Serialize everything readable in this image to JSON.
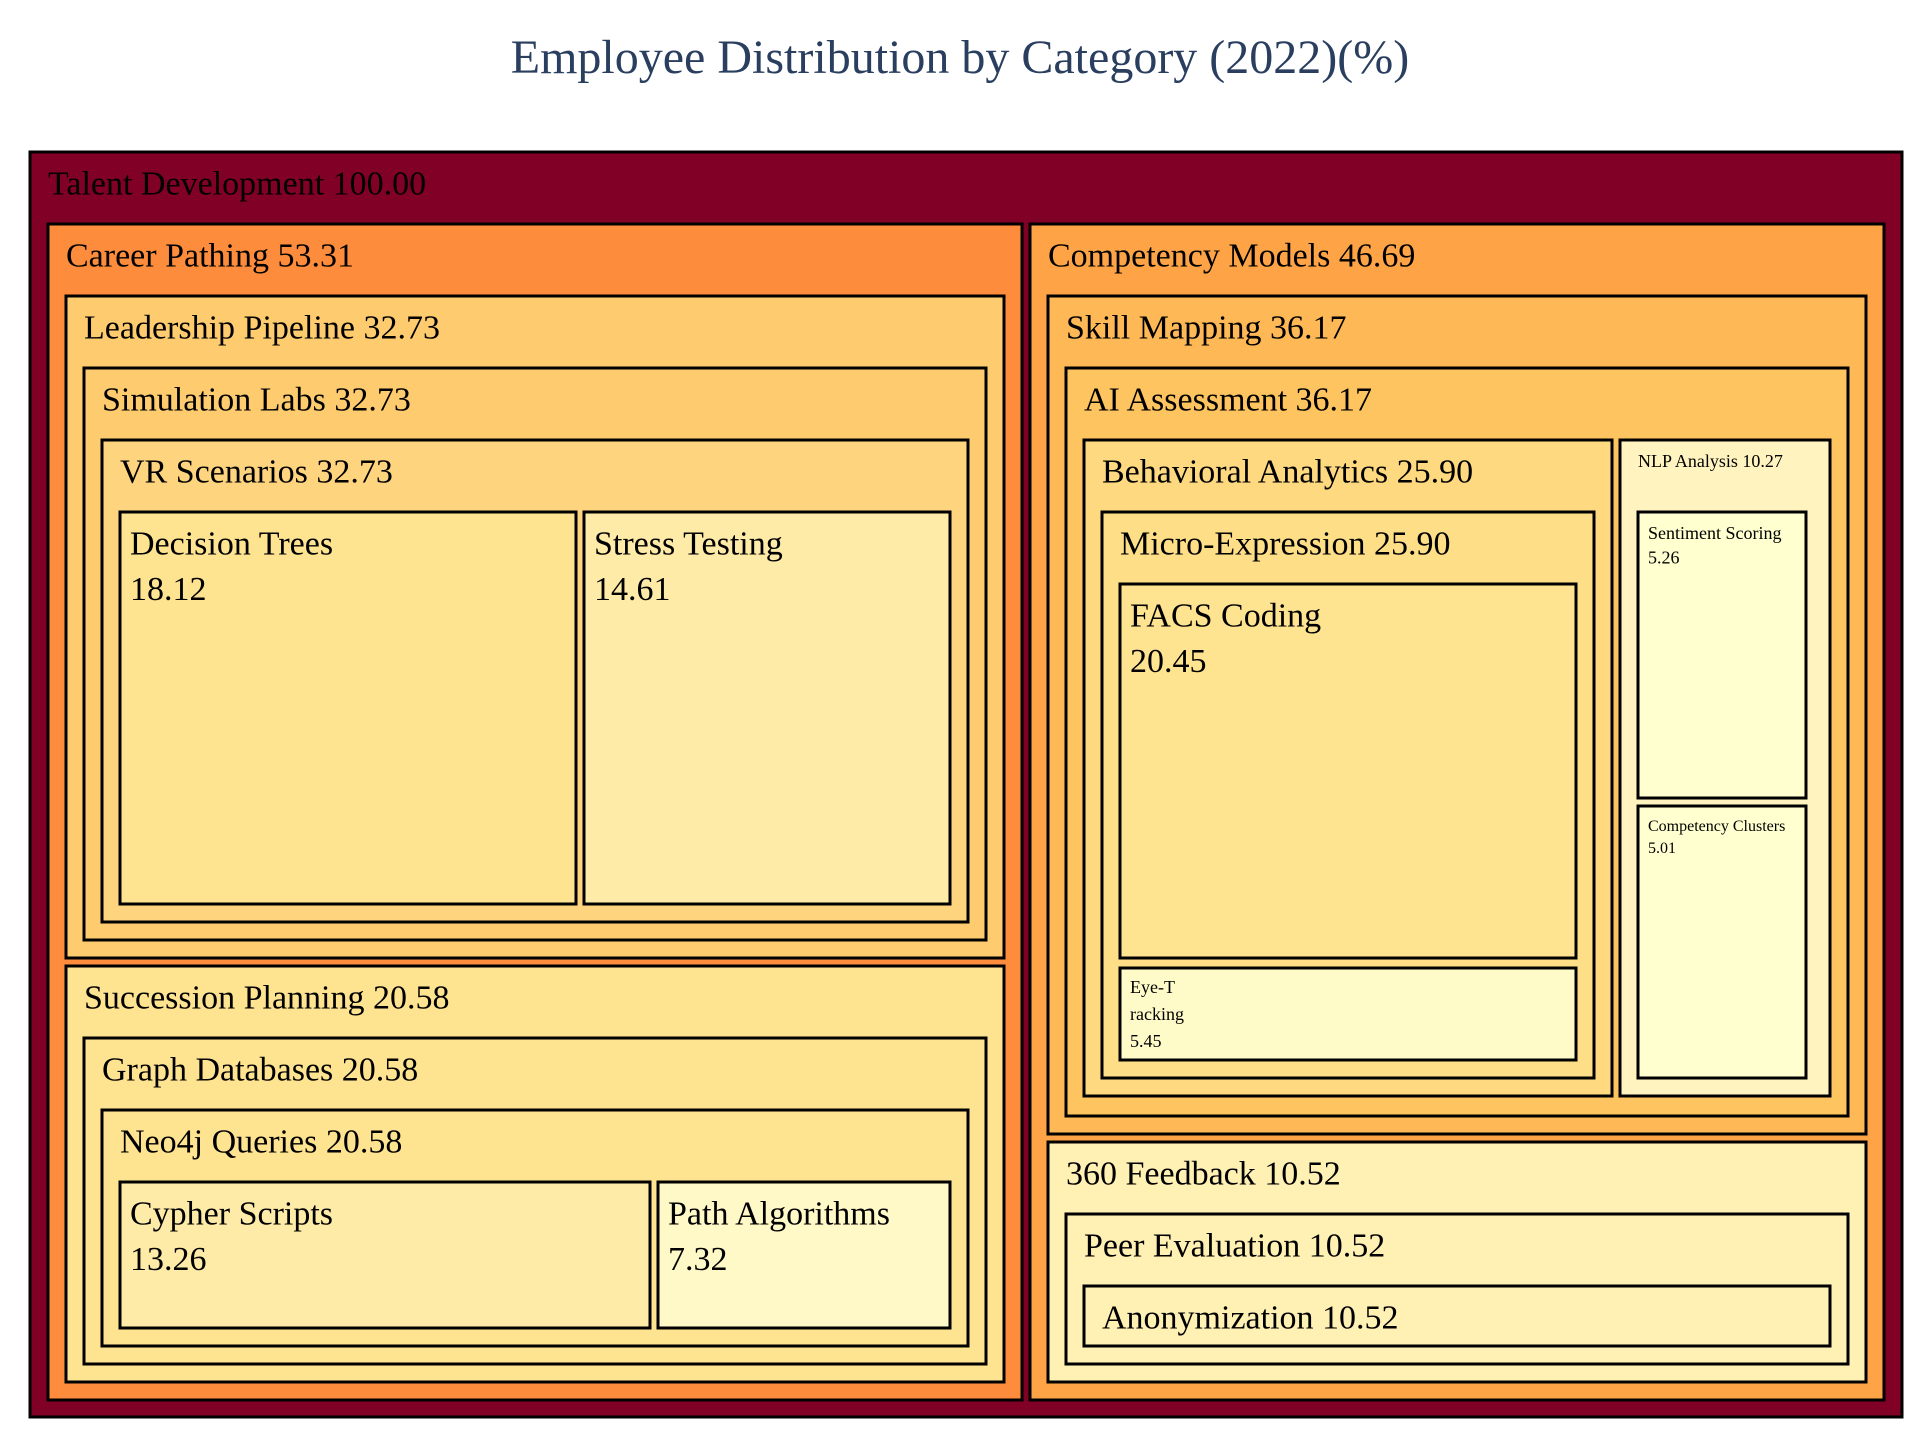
{
  "chart_data": {
    "type": "treemap",
    "title": "Employee Distribution by Category (2022)(%)",
    "root": {
      "name": "Talent Development",
      "value": "100.00",
      "children": [
        {
          "name": "Career Pathing",
          "value": "53.31",
          "children": [
            {
              "name": "Leadership Pipeline",
              "value": "32.73",
              "children": [
                {
                  "name": "Simulation Labs",
                  "value": "32.73",
                  "children": [
                    {
                      "name": "VR Scenarios",
                      "value": "32.73",
                      "children": [
                        {
                          "name": "Decision Trees",
                          "value": "18.12"
                        },
                        {
                          "name": "Stress Testing",
                          "value": "14.61"
                        }
                      ]
                    }
                  ]
                }
              ]
            },
            {
              "name": "Succession Planning",
              "value": "20.58",
              "children": [
                {
                  "name": "Graph Databases",
                  "value": "20.58",
                  "children": [
                    {
                      "name": "Neo4j Queries",
                      "value": "20.58",
                      "children": [
                        {
                          "name": "Cypher Scripts",
                          "value": "13.26"
                        },
                        {
                          "name": "Path Algorithms",
                          "value": "7.32"
                        }
                      ]
                    }
                  ]
                }
              ]
            }
          ]
        },
        {
          "name": "Competency Models",
          "value": "46.69",
          "children": [
            {
              "name": "Skill Mapping",
              "value": "36.17",
              "children": [
                {
                  "name": "AI Assessment",
                  "value": "36.17",
                  "children": [
                    {
                      "name": "Behavioral Analytics",
                      "value": "25.90",
                      "children": [
                        {
                          "name": "Micro-Expression",
                          "value": "25.90",
                          "children": [
                            {
                              "name": "FACS Coding",
                              "value": "20.45"
                            },
                            {
                              "name": "Eye-Tracking",
                              "value": "5.45"
                            }
                          ]
                        }
                      ]
                    },
                    {
                      "name": "NLP Analysis",
                      "value": "10.27",
                      "children": [
                        {
                          "name": "Sentiment Scoring",
                          "value": "5.26"
                        },
                        {
                          "name": "Competency Clusters",
                          "value": "5.01"
                        }
                      ]
                    }
                  ]
                }
              ]
            },
            {
              "name": "360 Feedback",
              "value": "10.52",
              "children": [
                {
                  "name": "Peer Evaluation",
                  "value": "10.52",
                  "children": [
                    {
                      "name": "Anonymization",
                      "value": "10.52"
                    }
                  ]
                }
              ]
            }
          ]
        }
      ]
    }
  }
}
